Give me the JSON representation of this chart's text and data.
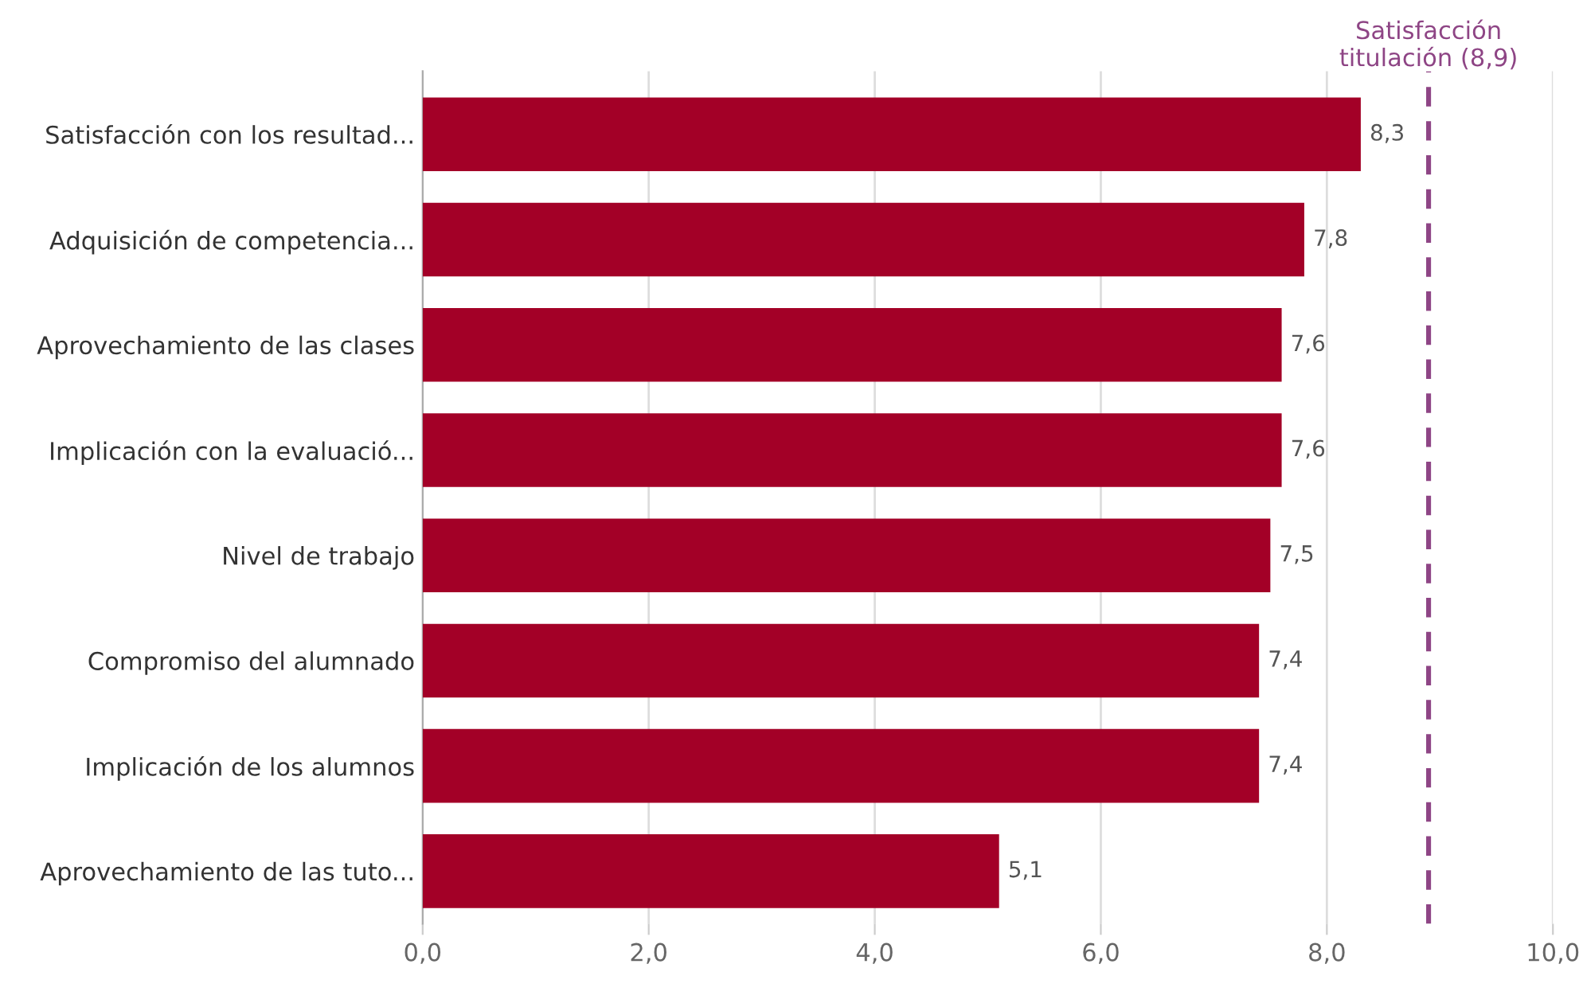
{
  "chart_data": {
    "type": "bar",
    "orientation": "horizontal",
    "categories": [
      "Satisfacción con los resultad...",
      "Adquisición de competencia...",
      "Aprovechamiento de las clases",
      "Implicación con la evaluació...",
      "Nivel de trabajo",
      "Compromiso del alumnado",
      "Implicación de los alumnos",
      "Aprovechamiento de las tuto..."
    ],
    "values": [
      8.3,
      7.8,
      7.6,
      7.6,
      7.5,
      7.4,
      7.4,
      5.1
    ],
    "value_labels": [
      "8,3",
      "7,8",
      "7,6",
      "7,6",
      "7,5",
      "7,4",
      "7,4",
      "5,1"
    ],
    "color": "#a30027",
    "xlim": [
      0,
      10
    ],
    "xticks": [
      {
        "value": 0,
        "label": "0,0"
      },
      {
        "value": 2,
        "label": "2,0"
      },
      {
        "value": 4,
        "label": "4,0"
      },
      {
        "value": 6,
        "label": "6,0"
      },
      {
        "value": 8,
        "label": "8,0"
      },
      {
        "value": 10,
        "label": "10,0"
      }
    ],
    "grid": "x",
    "ref_lines": [
      {
        "axis": "x",
        "value": 8.9,
        "label": "Satisfacción\ntitulación (8,9)",
        "color": "#8e4585",
        "line_style": "dashed"
      }
    ]
  }
}
